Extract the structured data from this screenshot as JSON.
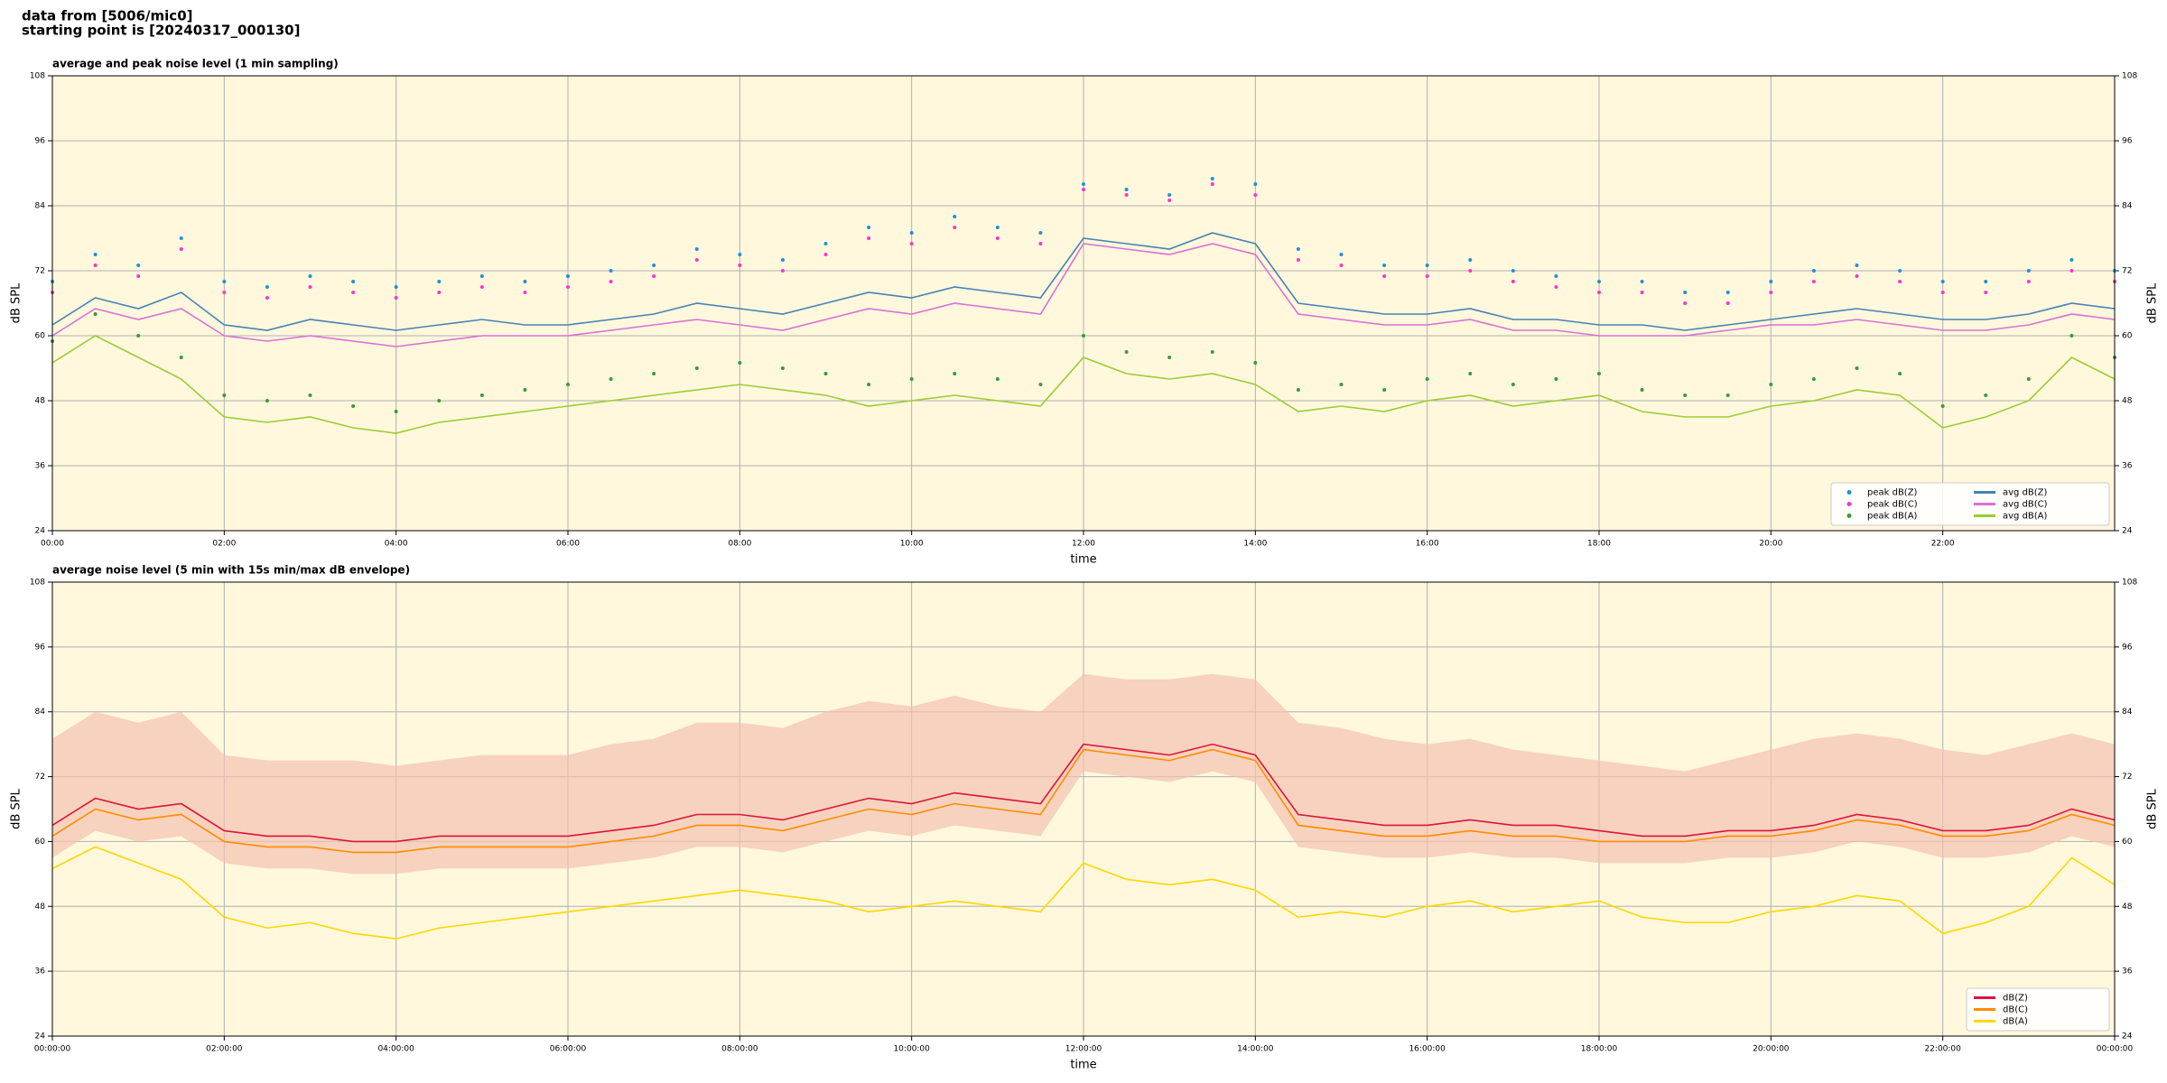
{
  "header": {
    "source": "data from [5006/mic0]",
    "start": "starting point is [20240317_000130]"
  },
  "chart_data": [
    {
      "type": "line",
      "title": "average and peak noise level (1 min sampling)",
      "x_label": "time",
      "y_label": "dB SPL",
      "y2_label": "dB SPL",
      "xlim": [
        0,
        24
      ],
      "ylim": [
        24,
        108
      ],
      "xticks": [
        {
          "value": 0,
          "label": "00:00"
        },
        {
          "value": 2,
          "label": "02:00"
        },
        {
          "value": 4,
          "label": "04:00"
        },
        {
          "value": 6,
          "label": "06:00"
        },
        {
          "value": 8,
          "label": "08:00"
        },
        {
          "value": 10,
          "label": "10:00"
        },
        {
          "value": 12,
          "label": "12:00"
        },
        {
          "value": 14,
          "label": "14:00"
        },
        {
          "value": 16,
          "label": "16:00"
        },
        {
          "value": 18,
          "label": "18:00"
        },
        {
          "value": 20,
          "label": "20:00"
        },
        {
          "value": 22,
          "label": "22:00"
        }
      ],
      "yticks": [
        24,
        36,
        48,
        60,
        72,
        84,
        96,
        108
      ],
      "grid": true,
      "background": "#fff8dc",
      "legend": "lower right",
      "legend_columns": 2,
      "x": [
        0,
        0.5,
        1,
        1.5,
        2,
        2.5,
        3,
        3.5,
        4,
        4.5,
        5,
        5.5,
        6,
        6.5,
        7,
        7.5,
        8,
        8.5,
        9,
        9.5,
        10,
        10.5,
        11,
        11.5,
        12,
        12.5,
        13,
        13.5,
        14,
        14.5,
        15,
        15.5,
        16,
        16.5,
        17,
        17.5,
        18,
        18.5,
        19,
        19.5,
        20,
        20.5,
        21,
        21.5,
        22,
        22.5,
        23,
        23.5,
        24
      ],
      "series": [
        {
          "name": "peak dB(Z)",
          "type": "scatter",
          "color": "#1f8fe0",
          "values": [
            70,
            75,
            73,
            78,
            70,
            69,
            71,
            70,
            69,
            70,
            71,
            70,
            71,
            72,
            73,
            76,
            75,
            74,
            77,
            80,
            79,
            82,
            80,
            79,
            88,
            87,
            86,
            89,
            88,
            76,
            75,
            73,
            73,
            74,
            72,
            71,
            70,
            70,
            68,
            68,
            70,
            72,
            73,
            72,
            70,
            70,
            72,
            74,
            72
          ]
        },
        {
          "name": "peak dB(C)",
          "type": "scatter",
          "color": "#ff33cc",
          "values": [
            68,
            73,
            71,
            76,
            68,
            67,
            69,
            68,
            67,
            68,
            69,
            68,
            69,
            70,
            71,
            74,
            73,
            72,
            75,
            78,
            77,
            80,
            78,
            77,
            87,
            86,
            85,
            88,
            86,
            74,
            73,
            71,
            71,
            72,
            70,
            69,
            68,
            68,
            66,
            66,
            68,
            70,
            71,
            70,
            68,
            68,
            70,
            72,
            70
          ]
        },
        {
          "name": "peak dB(A)",
          "type": "scatter",
          "color": "#3a9a3a",
          "values": [
            59,
            64,
            60,
            56,
            49,
            48,
            49,
            47,
            46,
            48,
            49,
            50,
            51,
            52,
            53,
            54,
            55,
            54,
            53,
            51,
            52,
            53,
            52,
            51,
            60,
            57,
            56,
            57,
            55,
            50,
            51,
            50,
            52,
            53,
            51,
            52,
            53,
            50,
            49,
            49,
            51,
            52,
            54,
            53,
            47,
            49,
            52,
            60,
            56
          ]
        },
        {
          "name": "avg dB(Z)",
          "type": "line",
          "color": "#4682b4",
          "values": [
            62,
            67,
            65,
            68,
            62,
            61,
            63,
            62,
            61,
            62,
            63,
            62,
            62,
            63,
            64,
            66,
            65,
            64,
            66,
            68,
            67,
            69,
            68,
            67,
            78,
            77,
            76,
            79,
            77,
            66,
            65,
            64,
            64,
            65,
            63,
            63,
            62,
            62,
            61,
            62,
            63,
            64,
            65,
            64,
            63,
            63,
            64,
            66,
            65
          ]
        },
        {
          "name": "avg dB(C)",
          "type": "line",
          "color": "#da70d6",
          "values": [
            60,
            65,
            63,
            65,
            60,
            59,
            60,
            59,
            58,
            59,
            60,
            60,
            60,
            61,
            62,
            63,
            62,
            61,
            63,
            65,
            64,
            66,
            65,
            64,
            77,
            76,
            75,
            77,
            75,
            64,
            63,
            62,
            62,
            63,
            61,
            61,
            60,
            60,
            60,
            61,
            62,
            62,
            63,
            62,
            61,
            61,
            62,
            64,
            63
          ]
        },
        {
          "name": "avg dB(A)",
          "type": "line",
          "color": "#9acd32",
          "values": [
            55,
            60,
            56,
            52,
            45,
            44,
            45,
            43,
            42,
            44,
            45,
            46,
            47,
            48,
            49,
            50,
            51,
            50,
            49,
            47,
            48,
            49,
            48,
            47,
            56,
            53,
            52,
            53,
            51,
            46,
            47,
            46,
            48,
            49,
            47,
            48,
            49,
            46,
            45,
            45,
            47,
            48,
            50,
            49,
            43,
            45,
            48,
            56,
            52
          ]
        }
      ]
    },
    {
      "type": "line",
      "title": "average noise level (5 min with 15s min/max dB envelope)",
      "x_label": "time",
      "y_label": "dB SPL",
      "y2_label": "dB SPL",
      "xlim": [
        0,
        24
      ],
      "ylim": [
        24,
        108
      ],
      "xticks": [
        {
          "value": 0,
          "label": "00:00:00"
        },
        {
          "value": 2,
          "label": "02:00:00"
        },
        {
          "value": 4,
          "label": "04:00:00"
        },
        {
          "value": 6,
          "label": "06:00:00"
        },
        {
          "value": 8,
          "label": "08:00:00"
        },
        {
          "value": 10,
          "label": "10:00:00"
        },
        {
          "value": 12,
          "label": "12:00:00"
        },
        {
          "value": 14,
          "label": "14:00:00"
        },
        {
          "value": 16,
          "label": "16:00:00"
        },
        {
          "value": 18,
          "label": "18:00:00"
        },
        {
          "value": 20,
          "label": "20:00:00"
        },
        {
          "value": 22,
          "label": "22:00:00"
        },
        {
          "value": 24,
          "label": "00:00:00"
        }
      ],
      "yticks": [
        24,
        36,
        48,
        60,
        72,
        84,
        96,
        108
      ],
      "grid": true,
      "background": "#fff8dc",
      "legend": "lower right",
      "legend_columns": 1,
      "x": [
        0,
        0.5,
        1,
        1.5,
        2,
        2.5,
        3,
        3.5,
        4,
        4.5,
        5,
        5.5,
        6,
        6.5,
        7,
        7.5,
        8,
        8.5,
        9,
        9.5,
        10,
        10.5,
        11,
        11.5,
        12,
        12.5,
        13,
        13.5,
        14,
        14.5,
        15,
        15.5,
        16,
        16.5,
        17,
        17.5,
        18,
        18.5,
        19,
        19.5,
        20,
        20.5,
        21,
        21.5,
        22,
        22.5,
        23,
        23.5,
        24
      ],
      "envelope": {
        "color": "#f4c2b0",
        "low": [
          57,
          62,
          60,
          61,
          56,
          55,
          55,
          54,
          54,
          55,
          55,
          55,
          55,
          56,
          57,
          59,
          59,
          58,
          60,
          62,
          61,
          63,
          62,
          61,
          73,
          72,
          71,
          73,
          71,
          59,
          58,
          57,
          57,
          58,
          57,
          57,
          56,
          56,
          56,
          57,
          57,
          58,
          60,
          59,
          57,
          57,
          58,
          61,
          59
        ],
        "high": [
          79,
          84,
          82,
          84,
          76,
          75,
          75,
          75,
          74,
          75,
          76,
          76,
          76,
          78,
          79,
          82,
          82,
          81,
          84,
          86,
          85,
          87,
          85,
          84,
          91,
          90,
          90,
          91,
          90,
          82,
          81,
          79,
          78,
          79,
          77,
          76,
          75,
          74,
          73,
          75,
          77,
          79,
          80,
          79,
          77,
          76,
          78,
          80,
          78
        ]
      },
      "series": [
        {
          "name": "dB(Z)",
          "type": "line",
          "color": "#dc143c",
          "values": [
            63,
            68,
            66,
            67,
            62,
            61,
            61,
            60,
            60,
            61,
            61,
            61,
            61,
            62,
            63,
            65,
            65,
            64,
            66,
            68,
            67,
            69,
            68,
            67,
            78,
            77,
            76,
            78,
            76,
            65,
            64,
            63,
            63,
            64,
            63,
            63,
            62,
            61,
            61,
            62,
            62,
            63,
            65,
            64,
            62,
            62,
            63,
            66,
            64
          ]
        },
        {
          "name": "dB(C)",
          "type": "line",
          "color": "#ff8c00",
          "values": [
            61,
            66,
            64,
            65,
            60,
            59,
            59,
            58,
            58,
            59,
            59,
            59,
            59,
            60,
            61,
            63,
            63,
            62,
            64,
            66,
            65,
            67,
            66,
            65,
            77,
            76,
            75,
            77,
            75,
            63,
            62,
            61,
            61,
            62,
            61,
            61,
            60,
            60,
            60,
            61,
            61,
            62,
            64,
            63,
            61,
            61,
            62,
            65,
            63
          ]
        },
        {
          "name": "dB(A)",
          "type": "line",
          "color": "#ffd700",
          "values": [
            55,
            59,
            56,
            53,
            46,
            44,
            45,
            43,
            42,
            44,
            45,
            46,
            47,
            48,
            49,
            50,
            51,
            50,
            49,
            47,
            48,
            49,
            48,
            47,
            56,
            53,
            52,
            53,
            51,
            46,
            47,
            46,
            48,
            49,
            47,
            48,
            49,
            46,
            45,
            45,
            47,
            48,
            50,
            49,
            43,
            45,
            48,
            57,
            52
          ]
        }
      ]
    }
  ]
}
